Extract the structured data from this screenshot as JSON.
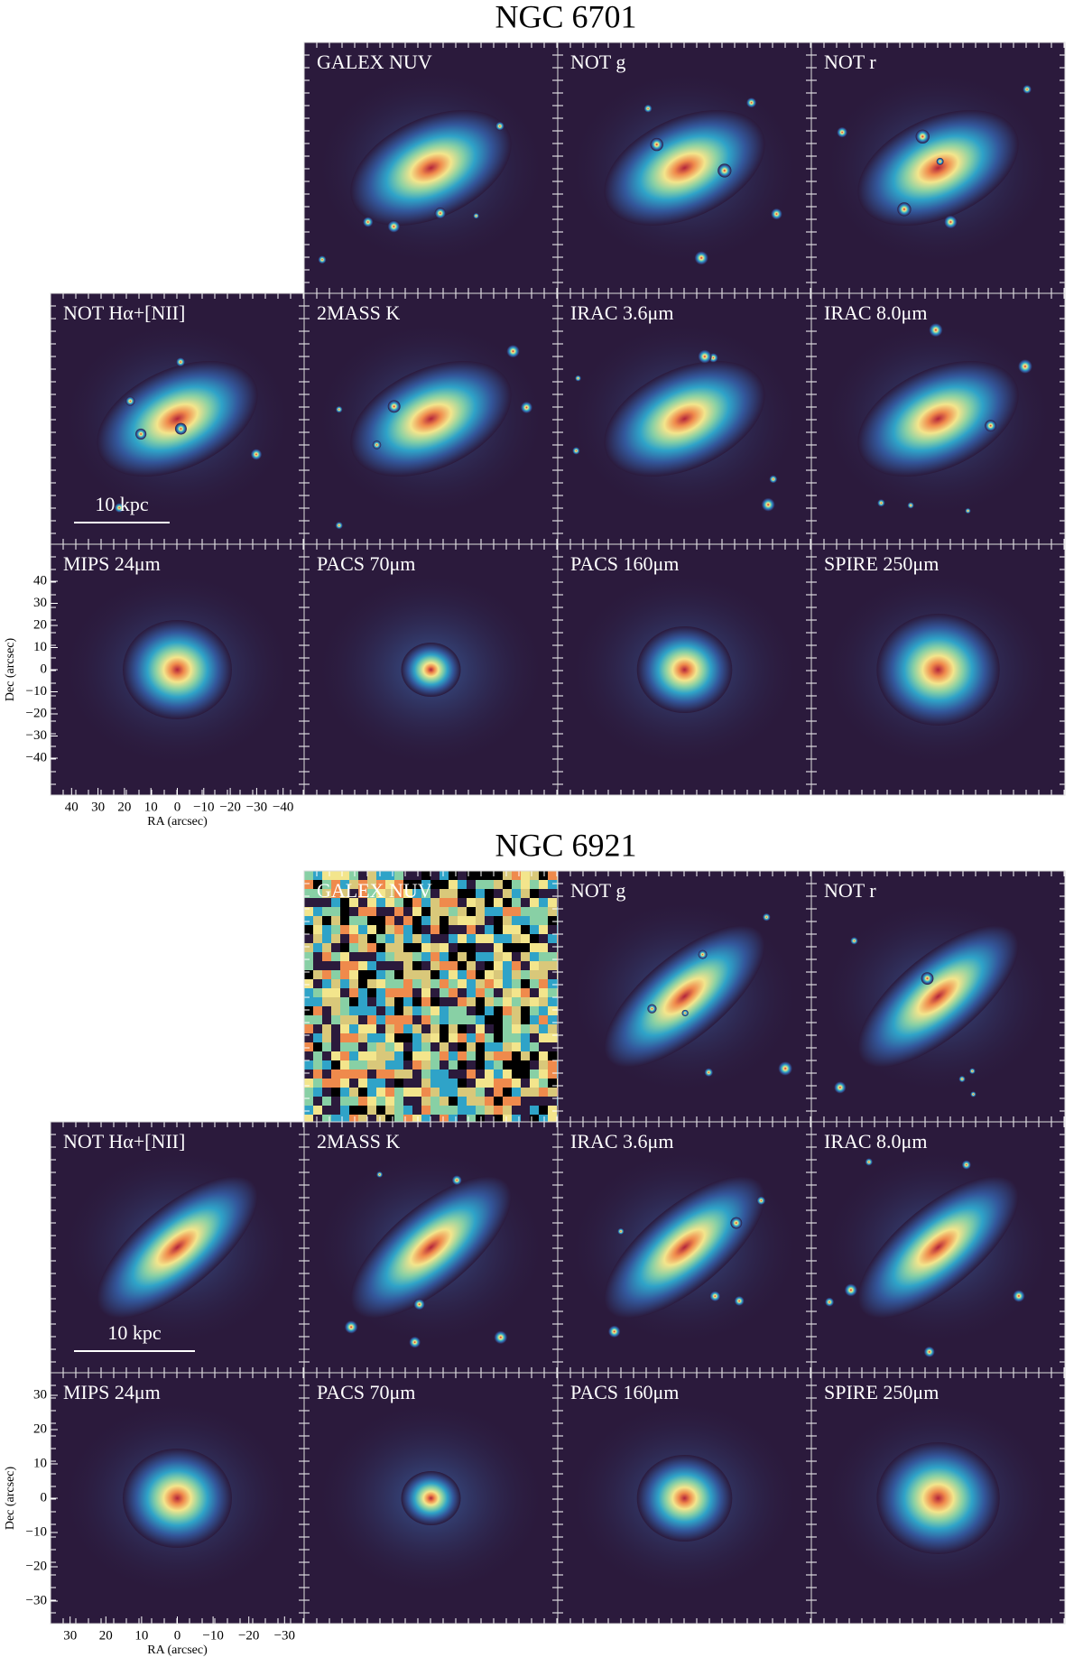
{
  "figures": [
    {
      "title": "NGC 6701",
      "rows": [
        [
          "GALEX NUV",
          "NOT g",
          "NOT r"
        ],
        [
          "NOT Hα+[NII]",
          "2MASS K",
          "IRAC 3.6μm",
          "IRAC 8.0μm"
        ],
        [
          "MIPS 24μm",
          "PACS 70μm",
          "PACS 160μm",
          "SPIRE 250μm"
        ]
      ],
      "scale_bar": "10 kpc",
      "y_axis": {
        "label": "Dec (arcsec)",
        "ticks": [
          40,
          30,
          20,
          10,
          0,
          {
            "value": -10,
            "label": "−10"
          },
          {
            "value": -20,
            "label": "−20"
          },
          {
            "value": -30,
            "label": "−30"
          },
          {
            "value": -40,
            "label": "−40"
          }
        ]
      },
      "x_axis": {
        "label": "RA (arcsec)",
        "ticks": [
          40,
          30,
          20,
          10,
          0,
          {
            "value": -10,
            "label": "−10"
          },
          {
            "value": -20,
            "label": "−20"
          },
          {
            "value": -30,
            "label": "−30"
          },
          {
            "value": -40,
            "label": "−40"
          }
        ]
      }
    },
    {
      "title": "NGC 6921",
      "rows": [
        [
          "GALEX NUV",
          "NOT g",
          "NOT r"
        ],
        [
          "NOT Hα+[NII]",
          "2MASS K",
          "IRAC 3.6μm",
          "IRAC 8.0μm"
        ],
        [
          "MIPS 24μm",
          "PACS 70μm",
          "PACS 160μm",
          "SPIRE 250μm"
        ]
      ],
      "scale_bar": "10 kpc",
      "y_axis": {
        "label": "Dec (arcsec)",
        "ticks": [
          30,
          20,
          10,
          0,
          {
            "value": -10,
            "label": "−10"
          },
          {
            "value": -20,
            "label": "−20"
          },
          {
            "value": -30,
            "label": "−30"
          }
        ]
      },
      "x_axis": {
        "label": "RA (arcsec)",
        "ticks": [
          30,
          20,
          10,
          0,
          {
            "value": -10,
            "label": "−10"
          },
          {
            "value": -20,
            "label": "−20"
          },
          {
            "value": -30,
            "label": "−30"
          }
        ]
      }
    }
  ]
}
